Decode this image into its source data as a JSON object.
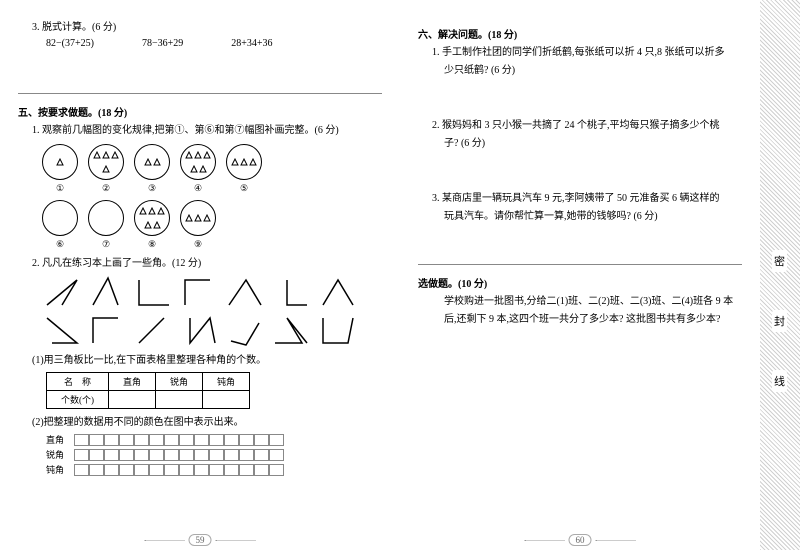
{
  "left": {
    "q3": {
      "title": "3. 脱式计算。(6 分)",
      "e1": "82−(37+25)",
      "e2": "78−36+29",
      "e3": "28+34+36"
    },
    "sec5": "五、按要求做题。(18 分)",
    "q5_1": "1. 观察前几幅图的变化规律,把第①、第⑥和第⑦幅图补画完整。(6 分)",
    "nums1": [
      "①",
      "②",
      "③",
      "④",
      "⑤"
    ],
    "nums2": [
      "⑥",
      "⑦",
      "⑧",
      "⑨"
    ],
    "q5_2": "2. 凡凡在练习本上画了一些角。(12 分)",
    "q5_2a": "(1)用三角板比一比,在下面表格里整理各种角的个数。",
    "tbl": {
      "h1": "名　称",
      "h2": "直角",
      "h3": "锐角",
      "h4": "钝角",
      "r1": "个数(个)"
    },
    "q5_2b": "(2)把整理的数据用不同的颜色在图中表示出来。",
    "gl1": "直角",
    "gl2": "锐角",
    "gl3": "钝角",
    "page": "59"
  },
  "right": {
    "sec6": "六、解决问题。(18 分)",
    "q6_1a": "1. 手工制作社团的同学们折纸鹤,每张纸可以折 4 只,8 张纸可以折多",
    "q6_1b": "少只纸鹤? (6 分)",
    "q6_2a": "2. 猴妈妈和 3 只小猴一共摘了 24 个桃子,平均每只猴子摘多少个桃",
    "q6_2b": "子? (6 分)",
    "q6_3a": "3. 某商店里一辆玩具汽车 9 元,李阿姨带了 50 元准备买 6 辆这样的",
    "q6_3b": "玩具汽车。请你帮忙算一算,她带的钱够吗? (6 分)",
    "bonus": "选做题。(10 分)",
    "bonus_a": "学校购进一批图书,分给二(1)班、二(2)班、二(3)班、二(4)班各 9 本",
    "bonus_b": "后,还剩下 9 本,这四个班一共分了多少本? 这批图书共有多少本?",
    "page": "60",
    "bind": {
      "c1": "密",
      "c2": "封",
      "c3": "线"
    }
  },
  "style": {
    "tri_counts_row1": [
      1,
      4,
      2,
      5,
      3
    ],
    "tri_counts_row2": [
      0,
      0,
      5,
      3
    ],
    "angles_row1": [
      [
        5,
        30,
        35,
        5,
        20,
        30
      ],
      [
        5,
        30,
        20,
        3,
        30,
        30
      ],
      [
        5,
        5,
        5,
        30,
        35,
        30
      ],
      [
        30,
        5,
        5,
        5,
        5,
        30
      ],
      [
        3,
        30,
        20,
        5,
        35,
        30
      ],
      [
        15,
        5,
        15,
        30,
        35,
        30
      ],
      [
        5,
        30,
        20,
        5,
        35,
        30
      ]
    ],
    "angles_row2": [
      [
        5,
        5,
        35,
        30,
        10,
        30
      ],
      [
        5,
        30,
        5,
        5,
        30,
        5
      ],
      [
        5,
        30,
        30,
        5,
        5,
        30
      ],
      [
        10,
        5,
        10,
        30,
        30,
        5,
        35,
        30
      ],
      [
        5,
        28,
        20,
        32,
        33,
        10
      ],
      [
        3,
        30,
        30,
        30,
        15,
        5,
        35,
        30
      ],
      [
        5,
        5,
        5,
        30,
        30,
        30,
        35,
        5
      ]
    ]
  }
}
